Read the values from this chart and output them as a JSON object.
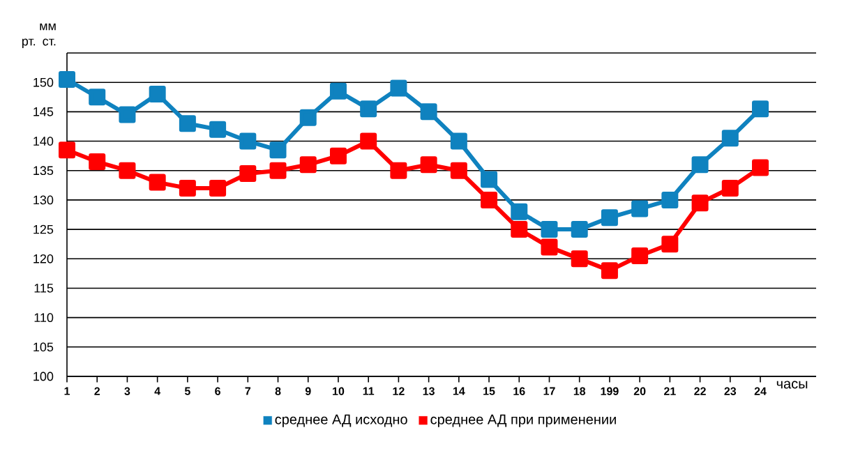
{
  "chart_data": {
    "type": "line",
    "ylabel": "мм рт. ст.",
    "xlabel": "часы",
    "categories": [
      "1",
      "2",
      "3",
      "4",
      "5",
      "6",
      "7",
      "8",
      "9",
      "10",
      "11",
      "12",
      "13",
      "14",
      "15",
      "16",
      "17",
      "18",
      "199",
      "20",
      "21",
      "22",
      "23",
      "24"
    ],
    "series": [
      {
        "name": "среднее АД исходно",
        "color": "#0f82bf",
        "values": [
          150.5,
          147.5,
          144.5,
          148,
          143,
          142,
          140,
          138.5,
          144,
          148.5,
          145.5,
          149,
          145,
          140,
          133.5,
          128,
          125,
          125,
          127,
          128.5,
          130,
          136,
          140.5,
          145.5
        ]
      },
      {
        "name": "среднее АД при применении",
        "color": "#ff0000",
        "values": [
          138.5,
          136.5,
          135,
          133,
          132,
          132,
          134.5,
          135,
          136,
          137.5,
          140,
          135,
          136,
          135,
          130,
          125,
          122,
          120,
          118,
          120.5,
          122.5,
          129.5,
          132,
          135.5
        ]
      }
    ],
    "ylim": [
      100,
      155
    ],
    "yticks": [
      100,
      105,
      110,
      115,
      120,
      125,
      130,
      135,
      140,
      145,
      150,
      {
        "value": 155,
        "label": null
      }
    ],
    "grid": "y",
    "legend": "bottom",
    "marker": "square",
    "line_style": "solid"
  }
}
